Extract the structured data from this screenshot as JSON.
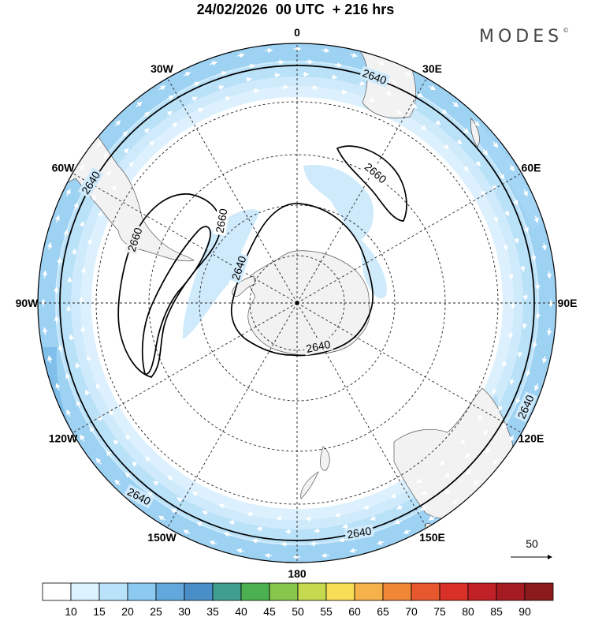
{
  "title": "24/02/2026  00 UTC  + 216 hrs",
  "brand": "MODES",
  "brand_mark": "©",
  "map": {
    "projection": "polar-stereographic-south",
    "longitude_labels": [
      {
        "text": "0",
        "lon": 0
      },
      {
        "text": "30E",
        "lon": 30
      },
      {
        "text": "60E",
        "lon": 60
      },
      {
        "text": "90E",
        "lon": 90
      },
      {
        "text": "120E",
        "lon": 120
      },
      {
        "text": "150E",
        "lon": 150
      },
      {
        "text": "180",
        "lon": 180
      },
      {
        "text": "150W",
        "lon": -150
      },
      {
        "text": "120W",
        "lon": -120
      },
      {
        "text": "90W",
        "lon": -90
      },
      {
        "text": "60W",
        "lon": -60
      },
      {
        "text": "30W",
        "lon": -30
      }
    ],
    "contour_labels": [
      {
        "text": "2640",
        "id": "outer-top"
      },
      {
        "text": "2640",
        "id": "outer-left"
      },
      {
        "text": "2640",
        "id": "outer-bottom-left"
      },
      {
        "text": "2640",
        "id": "outer-bottom"
      },
      {
        "text": "2640",
        "id": "outer-right"
      },
      {
        "text": "2640",
        "id": "inner-antarctic-left"
      },
      {
        "text": "2640",
        "id": "inner-antarctic-bottom"
      },
      {
        "text": "2660",
        "id": "high-east"
      },
      {
        "text": "2660",
        "id": "high-west-a"
      },
      {
        "text": "2660",
        "id": "high-west-b"
      }
    ],
    "reference_vector": {
      "label": "50"
    }
  },
  "colorbar": {
    "ticks": [
      "10",
      "15",
      "20",
      "25",
      "30",
      "35",
      "40",
      "45",
      "50",
      "55",
      "60",
      "65",
      "70",
      "75",
      "80",
      "85",
      "90"
    ],
    "colors": [
      "#ffffff",
      "#dcf2ff",
      "#b9e3fb",
      "#8ccaf2",
      "#62a8dd",
      "#4a8ec8",
      "#3f9e8f",
      "#4cb050",
      "#86c64a",
      "#c5da4e",
      "#f8de57",
      "#f5b24b",
      "#f08737",
      "#e8582f",
      "#d93127",
      "#c12127",
      "#a41c22",
      "#8a1a1c"
    ]
  },
  "colors": {
    "land": "#f2f2f2",
    "wind_light": "#d6eefb",
    "wind_mid": "#b1dcf6",
    "wind_strong": "#8cc8ef"
  }
}
